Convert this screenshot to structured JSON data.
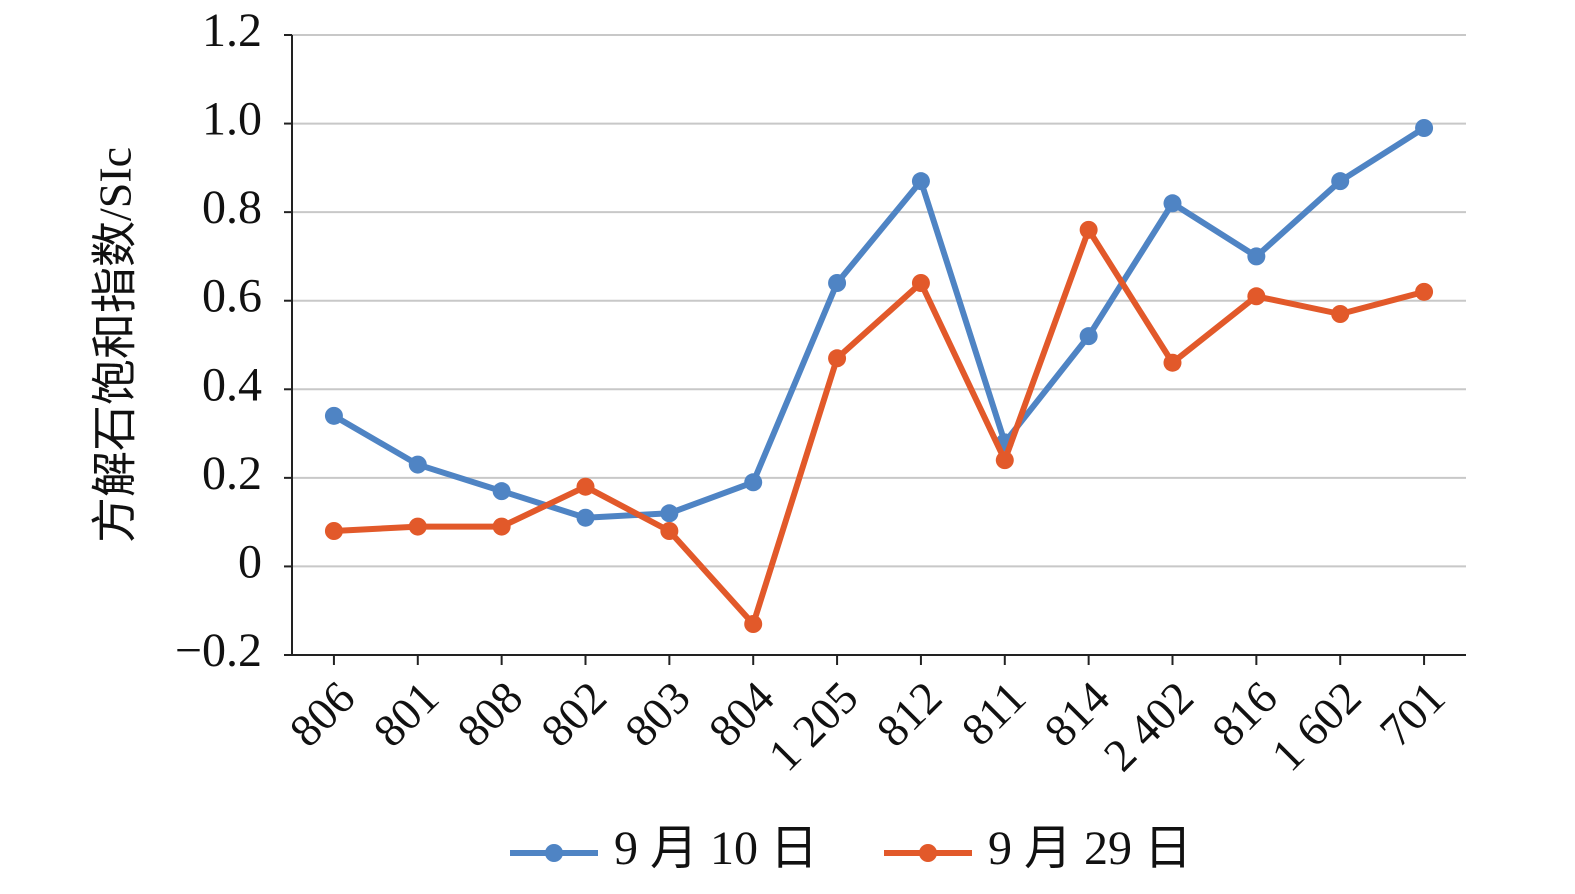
{
  "chart_data": {
    "type": "line",
    "ylabel": "方解石饱和指数/SIc",
    "categories": [
      "806",
      "801",
      "808",
      "802",
      "803",
      "804",
      "1 205",
      "812",
      "811",
      "814",
      "2 402",
      "816",
      "1 602",
      "701"
    ],
    "series": [
      {
        "name": "9 月 10 日",
        "color": "#4f84c4",
        "values": [
          0.34,
          0.23,
          0.17,
          0.11,
          0.12,
          0.19,
          0.64,
          0.87,
          0.28,
          0.52,
          0.82,
          0.7,
          0.87,
          0.99
        ]
      },
      {
        "name": "9 月 29 日",
        "color": "#e2592a",
        "values": [
          0.08,
          0.09,
          0.09,
          0.18,
          0.08,
          -0.13,
          0.47,
          0.64,
          0.24,
          0.76,
          0.46,
          0.61,
          0.57,
          0.62
        ]
      }
    ],
    "ylim": [
      -0.2,
      1.2
    ],
    "yticks": [
      {
        "value": -0.2,
        "label": "−0.2"
      },
      0,
      0.2,
      0.4,
      0.6,
      0.8,
      {
        "value": 1.0,
        "label": "1.0"
      },
      1.2
    ],
    "grid": true,
    "legend": "bottom"
  }
}
